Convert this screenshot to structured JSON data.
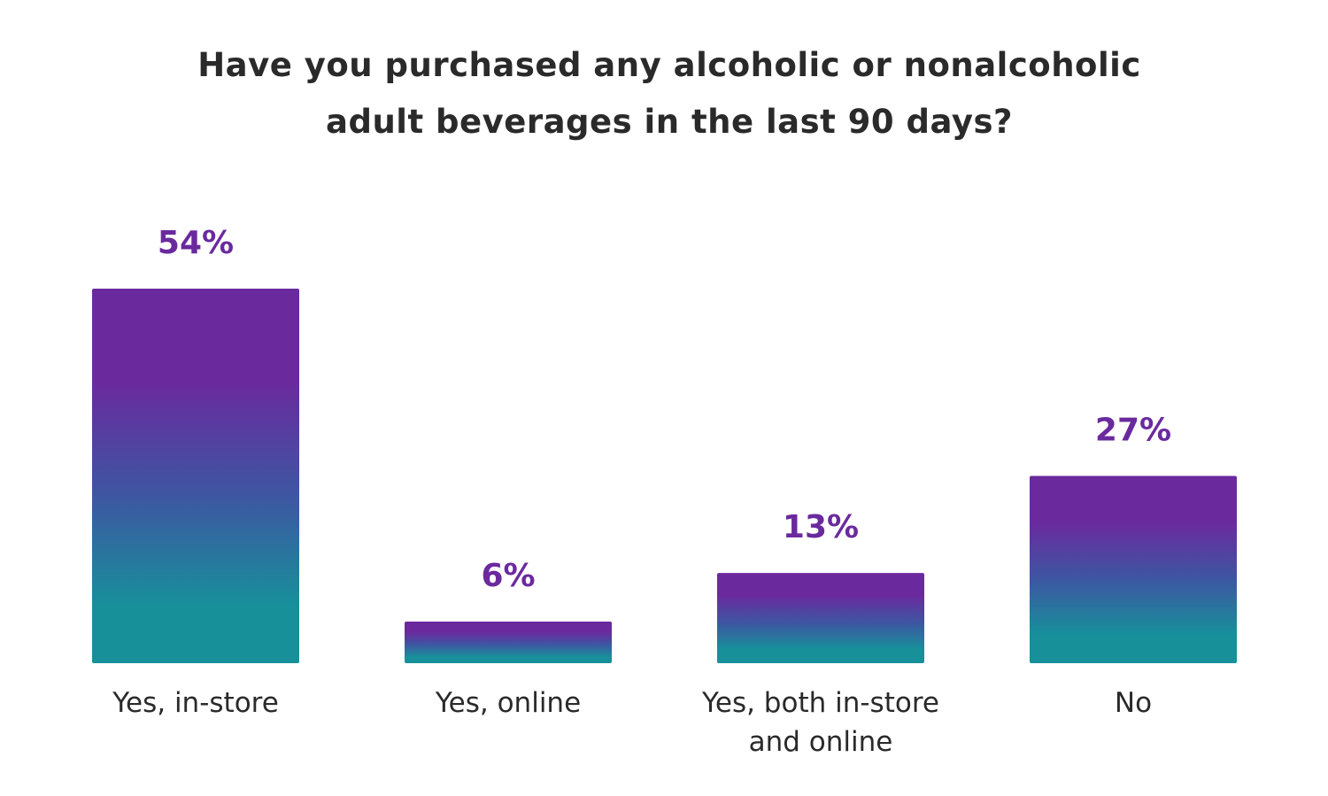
{
  "chart_data": {
    "type": "bar",
    "title": "Have you purchased any alcoholic or nonalcoholic adult beverages in the last 90 days?",
    "categories": [
      [
        "Yes, in-store"
      ],
      [
        "Yes, online"
      ],
      [
        "Yes, both in-store",
        "and online"
      ],
      [
        "No"
      ]
    ],
    "values": [
      54,
      6,
      13,
      27
    ],
    "value_labels": [
      "54%",
      "6%",
      "13%",
      "27%"
    ],
    "ylim": [
      0,
      54
    ],
    "grid": false,
    "legend": "none",
    "colors": {
      "bar_top": "#6a2a9e",
      "bar_bottom": "#17909a",
      "value_label": "#6a2a9e",
      "text": "#2a2a2a"
    }
  }
}
